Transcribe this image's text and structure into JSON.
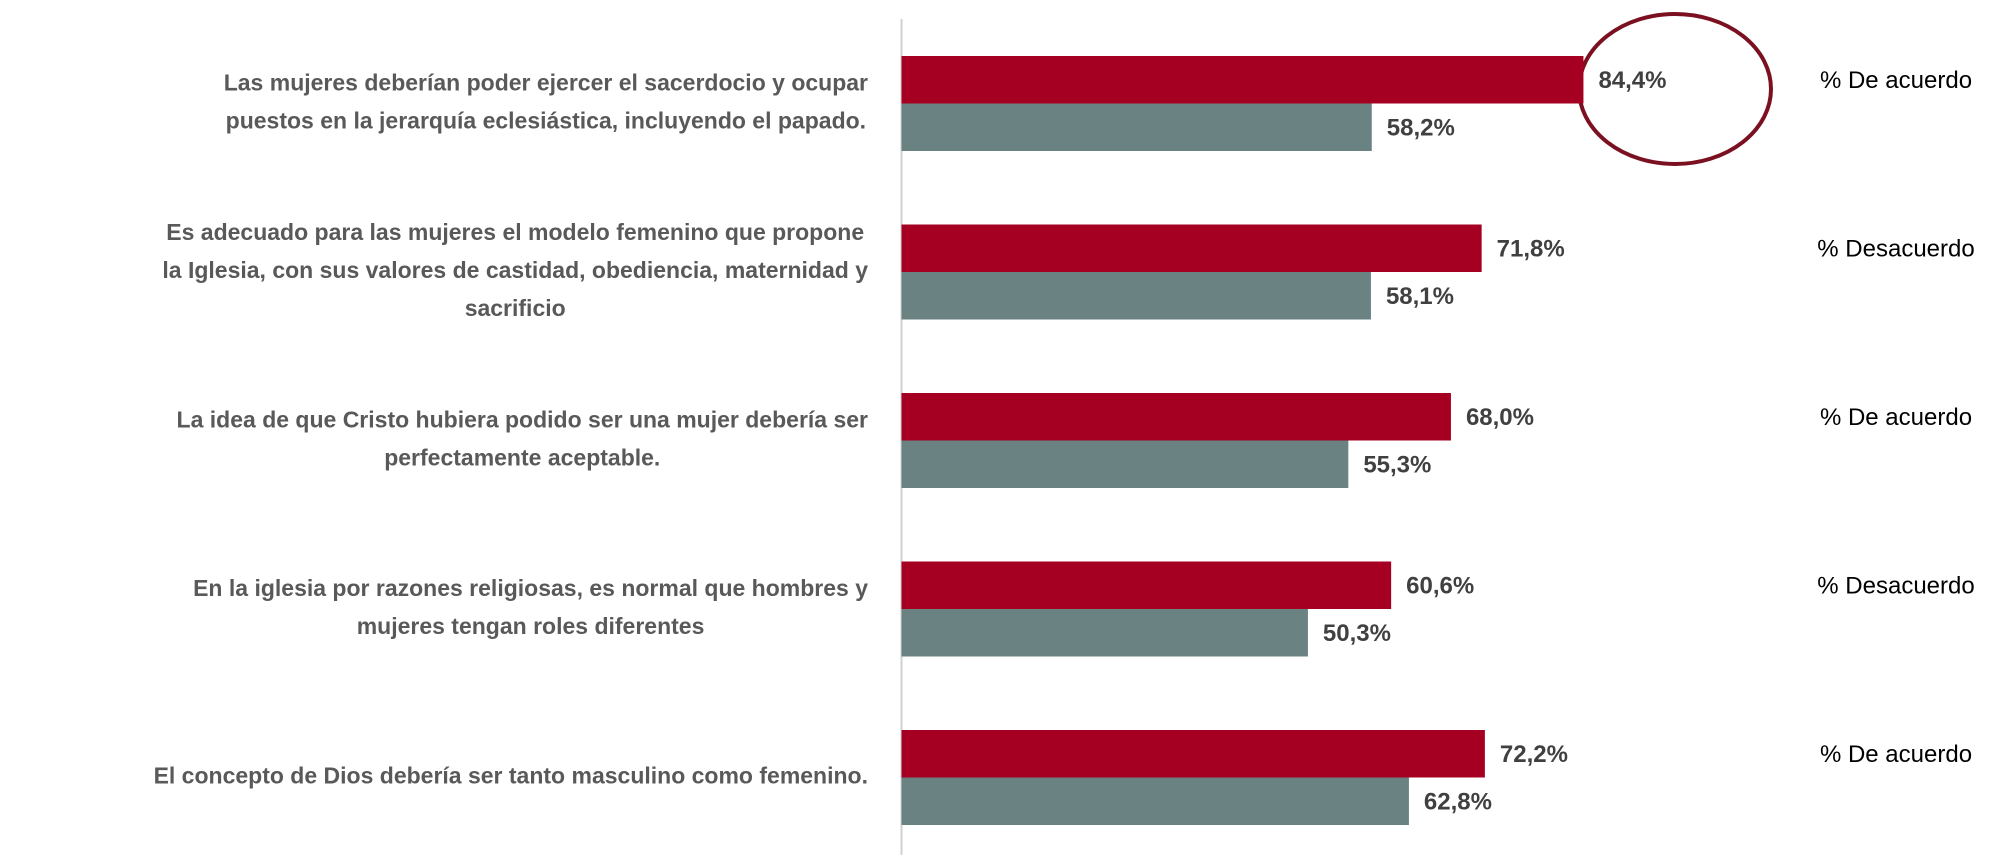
{
  "chart_data": {
    "type": "hbar",
    "categories": [
      [
        "Las mujeres deberían poder ejercer el sacerdocio y ocupar",
        "puestos en la jerarquía eclesiástica, incluyendo el papado."
      ],
      [
        "Es adecuado para las mujeres el modelo femenino que propone",
        "la Iglesia, con sus valores de castidad, obediencia, maternidad y",
        "sacrificio"
      ],
      [
        "La idea de que Cristo hubiera podido ser una mujer debería ser",
        "perfectamente aceptable."
      ],
      [
        "En la iglesia por razones religiosas, es normal que hombres y",
        "mujeres tengan roles diferentes"
      ],
      [
        "El concepto de Dios debería ser tanto masculino como femenino."
      ]
    ],
    "series": [
      {
        "color": "#a50021",
        "values": [
          84.4,
          71.8,
          68.0,
          60.6,
          72.2
        ],
        "value_labels": [
          "84,4%",
          "71,8%",
          "68,0%",
          "60,6%",
          "72,2%"
        ]
      },
      {
        "color": "#6b8283",
        "values": [
          58.2,
          58.1,
          55.3,
          50.3,
          62.8
        ],
        "value_labels": [
          "58,2%",
          "58,1%",
          "55,3%",
          "50,3%",
          "62,8%"
        ]
      }
    ],
    "annotations": [
      "% De acuerdo",
      "% Desacuerdo",
      "% De acuerdo",
      "% Desacuerdo",
      "% De acuerdo"
    ]
  }
}
